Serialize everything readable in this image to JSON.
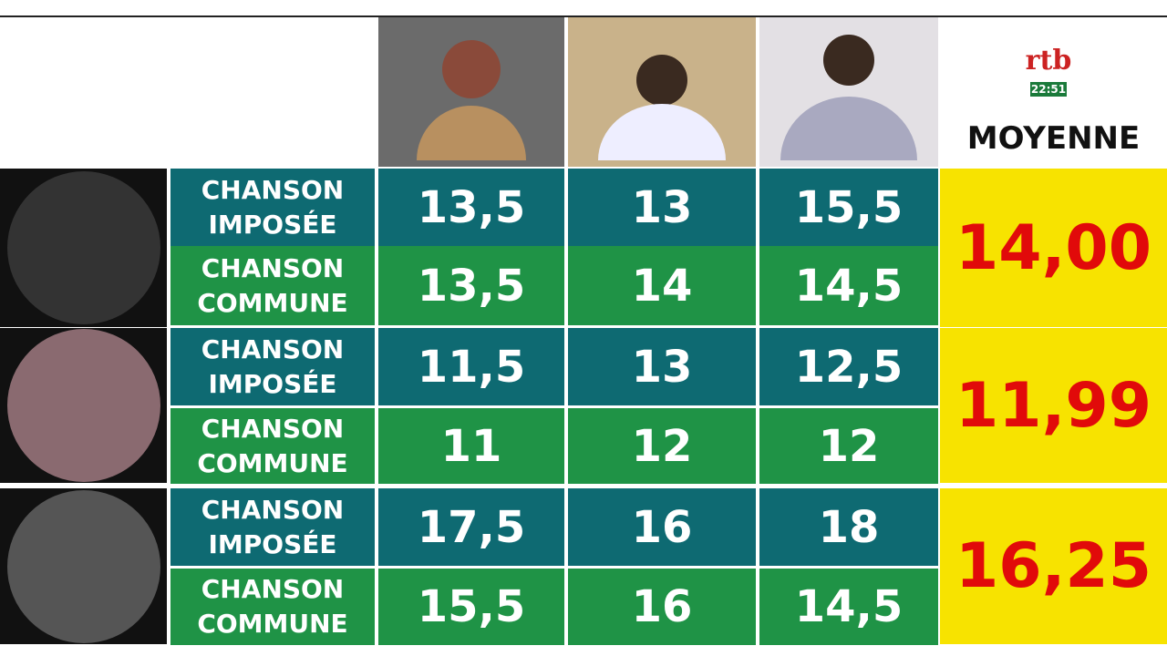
{
  "header": {
    "logo": "rtb",
    "time": "22:51",
    "average_label": "MOYENNE"
  },
  "contestants": [
    {
      "rows": [
        {
          "label": "CHANSON IMPOSÉE",
          "scores": [
            "13,5",
            "13",
            "15,5"
          ]
        },
        {
          "label": "CHANSON COMMUNE",
          "scores": [
            "13,5",
            "14",
            "14,5"
          ]
        }
      ],
      "average": "14,00"
    },
    {
      "rows": [
        {
          "label": "CHANSON IMPOSÉE",
          "scores": [
            "11,5",
            "13",
            "12,5"
          ]
        },
        {
          "label": "CHANSON COMMUNE",
          "scores": [
            "11",
            "12",
            "12"
          ]
        }
      ],
      "average": "11,99"
    },
    {
      "rows": [
        {
          "label": "CHANSON IMPOSÉE",
          "scores": [
            "17,5",
            "16",
            "18"
          ]
        },
        {
          "label": "CHANSON COMMUNE",
          "scores": [
            "15,5",
            "16",
            "14,5"
          ]
        }
      ],
      "average": "16,25"
    }
  ]
}
